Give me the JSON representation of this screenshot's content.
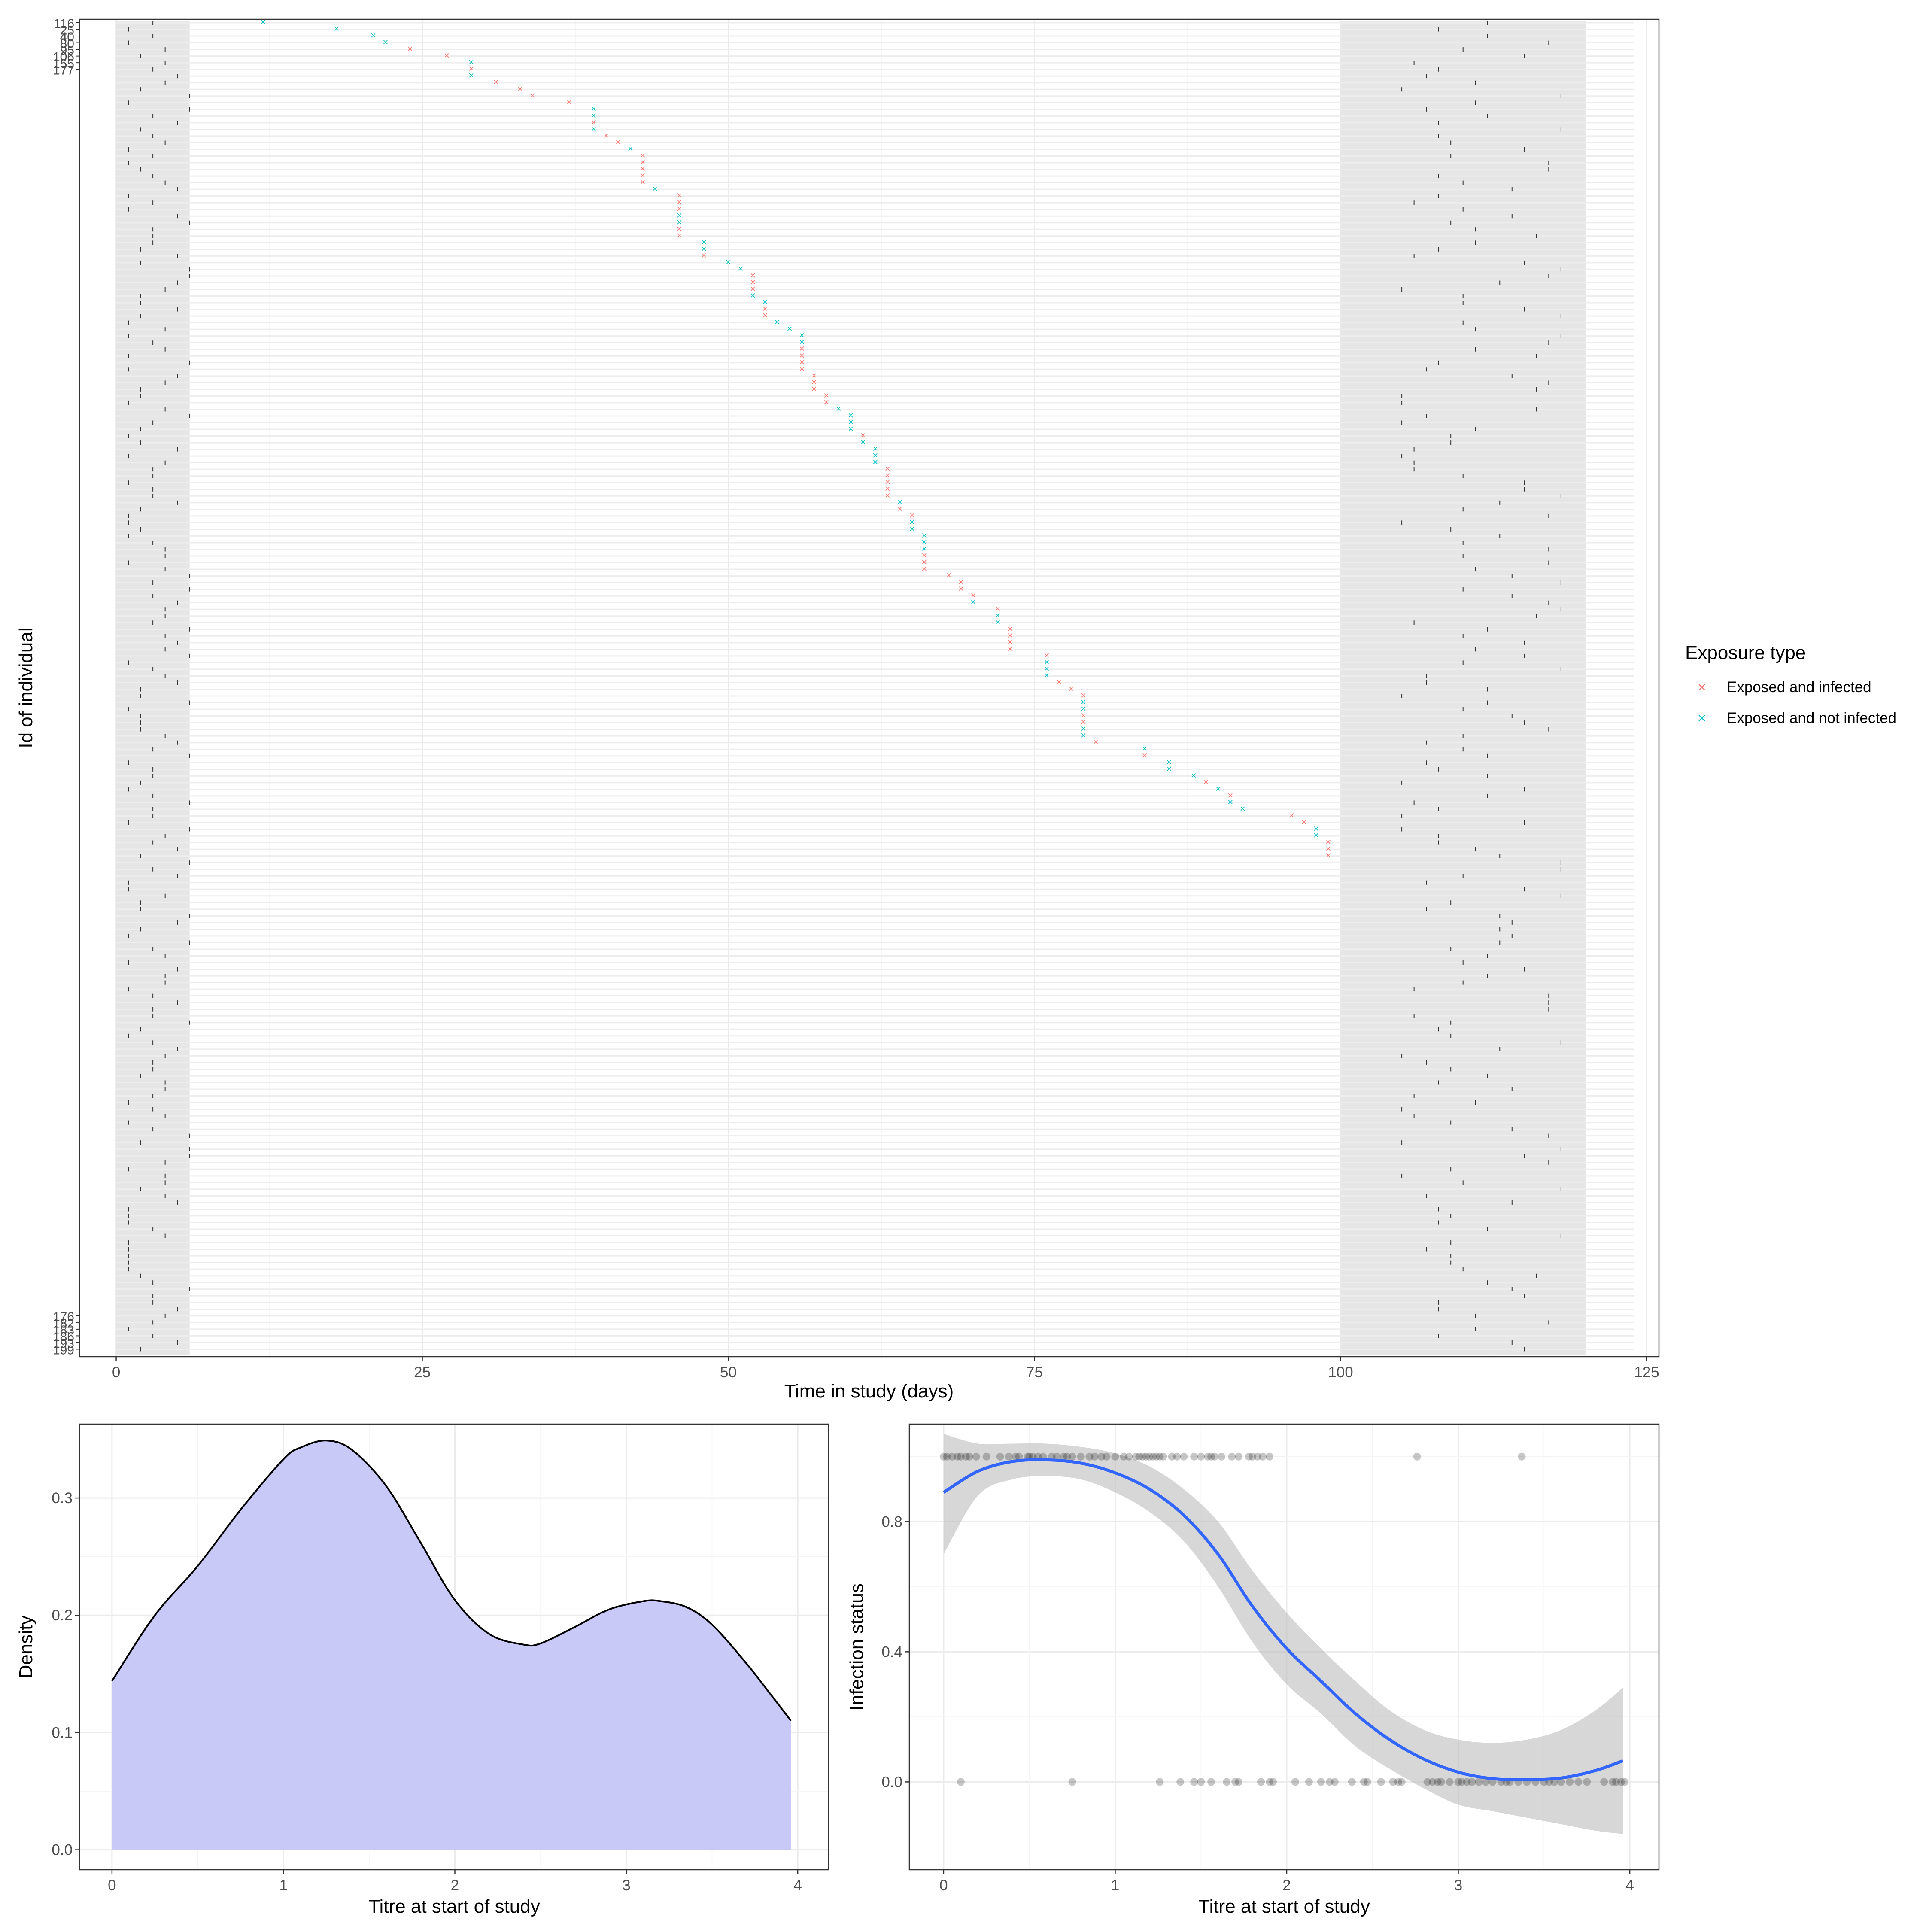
{
  "chart_data": [
    {
      "type": "scatter",
      "xlabel": "Time in study (days)",
      "ylabel": "Id of individual",
      "xlim": [
        -3,
        126
      ],
      "x_ticks": [
        0,
        25,
        50,
        75,
        100,
        125
      ],
      "grid": "on",
      "legend": {
        "title": "Exposure type",
        "placement": "right",
        "entries": [
          "Exposed and infected",
          "Exposed and not infected"
        ],
        "colors": [
          "#F8766D",
          "#00BFC4"
        ]
      },
      "shaded_windows": [
        [
          0,
          6
        ],
        [
          100,
          120
        ]
      ],
      "row_tick_labels_top": [
        "116",
        "25",
        "40",
        "80",
        "95",
        "106",
        "155",
        "177"
      ],
      "row_tick_labels_bottom": [
        "176",
        "182",
        "183",
        "186",
        "193",
        "199"
      ],
      "exposures": {
        "x": [
          12,
          18,
          21,
          22,
          24,
          27,
          29,
          29,
          29,
          31,
          33,
          34,
          37,
          39,
          39,
          39,
          39,
          40,
          41,
          42,
          43,
          43,
          43,
          43,
          43,
          44,
          46,
          46,
          46,
          46,
          46,
          46,
          46,
          48,
          48,
          48,
          50,
          51,
          52,
          52,
          52,
          52,
          53,
          53,
          53,
          54,
          55,
          56,
          56,
          56,
          56,
          56,
          56,
          57,
          57,
          57,
          58,
          58,
          59,
          60,
          60,
          60,
          61,
          61,
          62,
          62,
          62,
          63,
          63,
          63,
          63,
          63,
          64,
          64,
          65,
          65,
          65,
          66,
          66,
          66,
          66,
          66,
          66,
          68,
          69,
          69,
          70,
          70,
          72,
          72,
          72,
          73,
          73,
          73,
          73,
          76,
          76,
          76,
          76,
          77,
          78,
          79,
          79,
          79,
          79,
          79,
          79,
          79,
          80,
          84,
          84,
          86,
          86,
          88,
          89,
          90,
          91,
          91,
          92,
          96,
          97,
          98,
          98,
          99,
          99,
          99
        ],
        "status": [
          1,
          1,
          1,
          1,
          0,
          0,
          1,
          0,
          1,
          0,
          0,
          0,
          0,
          1,
          1,
          0,
          1,
          0,
          0,
          1,
          0,
          0,
          0,
          0,
          0,
          1,
          0,
          0,
          0,
          1,
          1,
          0,
          0,
          1,
          1,
          0,
          1,
          1,
          0,
          0,
          0,
          1,
          1,
          0,
          0,
          1,
          1,
          1,
          1,
          0,
          0,
          0,
          0,
          0,
          0,
          0,
          0,
          0,
          1,
          1,
          1,
          1,
          0,
          1,
          1,
          1,
          1,
          0,
          0,
          0,
          0,
          0,
          1,
          0,
          0,
          1,
          1,
          1,
          1,
          1,
          0,
          0,
          0,
          0,
          0,
          0,
          0,
          1,
          0,
          1,
          1,
          0,
          0,
          0,
          0,
          0,
          1,
          1,
          1,
          0,
          0,
          0,
          1,
          1,
          0,
          0,
          1,
          1,
          0,
          1,
          0,
          1,
          1,
          1,
          0,
          1,
          0,
          1,
          1,
          0,
          0,
          1,
          1,
          0,
          0,
          0
        ]
      }
    },
    {
      "type": "area",
      "xlabel": "Titre at start of study",
      "ylabel": "Density",
      "xlim": [
        -0.19,
        4.18
      ],
      "ylim": [
        -0.017,
        0.363
      ],
      "x_ticks": [
        0,
        1,
        2,
        3,
        4
      ],
      "y_ticks": [
        0.0,
        0.1,
        0.2,
        0.3
      ],
      "y_tick_labels": [
        "0.0",
        "0.1",
        "0.2",
        "0.3"
      ],
      "fill_color": "#C9C9F8",
      "line_color": "#000000",
      "x": [
        0.0,
        0.25,
        0.5,
        0.75,
        1.0,
        1.1,
        1.25,
        1.4,
        1.6,
        1.8,
        2.0,
        2.2,
        2.4,
        2.5,
        2.7,
        2.9,
        3.1,
        3.2,
        3.35,
        3.5,
        3.7,
        3.85,
        3.96
      ],
      "y": [
        0.144,
        0.2,
        0.242,
        0.29,
        0.333,
        0.343,
        0.349,
        0.341,
        0.31,
        0.262,
        0.213,
        0.184,
        0.175,
        0.176,
        0.19,
        0.205,
        0.212,
        0.212,
        0.207,
        0.192,
        0.159,
        0.131,
        0.11
      ]
    },
    {
      "type": "scatter",
      "xlabel": "Titre at start of study",
      "ylabel": "Infection status",
      "xlim": [
        -0.2,
        4.17
      ],
      "ylim": [
        -0.27,
        1.1
      ],
      "x_ticks": [
        0,
        1,
        2,
        3,
        4
      ],
      "y_ticks": [
        0.0,
        0.4,
        0.8
      ],
      "y_tick_labels": [
        "0.0",
        "0.4",
        "0.8"
      ],
      "points_infected_x": [
        0.0,
        0.02,
        0.05,
        0.08,
        0.1,
        0.13,
        0.15,
        0.19,
        0.25,
        0.33,
        0.38,
        0.42,
        0.44,
        0.49,
        0.5,
        0.52,
        0.55,
        0.58,
        0.63,
        0.66,
        0.7,
        0.72,
        0.75,
        0.8,
        0.85,
        0.88,
        0.92,
        0.95,
        1.0,
        1.05,
        1.08,
        1.12,
        1.14,
        1.16,
        1.18,
        1.2,
        1.22,
        1.24,
        1.26,
        1.28,
        1.33,
        1.36,
        1.4,
        1.46,
        1.5,
        1.54,
        1.56,
        1.58,
        1.62,
        1.68,
        1.72,
        1.78,
        1.8,
        1.83,
        1.86,
        1.9,
        2.76,
        3.37
      ],
      "points_infected_y": 1,
      "points_not_infected_x": [
        0.1,
        0.75,
        1.26,
        1.38,
        1.46,
        1.5,
        1.56,
        1.65,
        1.7,
        1.72,
        1.85,
        1.9,
        1.92,
        2.05,
        2.13,
        2.2,
        2.25,
        2.28,
        2.38,
        2.45,
        2.47,
        2.55,
        2.62,
        2.65,
        2.67,
        2.82,
        2.85,
        2.88,
        2.9,
        2.95,
        3.0,
        3.02,
        3.05,
        3.08,
        3.12,
        3.16,
        3.2,
        3.25,
        3.28,
        3.3,
        3.35,
        3.4,
        3.45,
        3.5,
        3.53,
        3.56,
        3.6,
        3.65,
        3.7,
        3.75,
        3.85,
        3.9,
        3.92,
        3.95,
        3.97
      ],
      "points_not_infected_y": 0,
      "smooth": {
        "color": "#3366FF",
        "ribbon_color": "#BDBDBD",
        "x": [
          0.0,
          0.2,
          0.4,
          0.6,
          0.8,
          1.0,
          1.2,
          1.4,
          1.6,
          1.8,
          2.0,
          2.2,
          2.4,
          2.6,
          2.8,
          3.0,
          3.2,
          3.4,
          3.6,
          3.8,
          3.96
        ],
        "y": [
          0.89,
          0.955,
          0.985,
          0.99,
          0.98,
          0.95,
          0.9,
          0.82,
          0.7,
          0.54,
          0.41,
          0.31,
          0.21,
          0.13,
          0.07,
          0.03,
          0.01,
          0.007,
          0.012,
          0.035,
          0.065
        ],
        "lower": [
          0.7,
          0.88,
          0.93,
          0.94,
          0.93,
          0.89,
          0.83,
          0.74,
          0.6,
          0.43,
          0.3,
          0.21,
          0.11,
          0.04,
          -0.02,
          -0.07,
          -0.09,
          -0.11,
          -0.13,
          -0.15,
          -0.16
        ],
        "upper": [
          1.07,
          1.04,
          1.04,
          1.04,
          1.03,
          1.01,
          0.97,
          0.9,
          0.8,
          0.65,
          0.52,
          0.41,
          0.31,
          0.22,
          0.16,
          0.13,
          0.12,
          0.13,
          0.16,
          0.22,
          0.29
        ]
      }
    }
  ]
}
